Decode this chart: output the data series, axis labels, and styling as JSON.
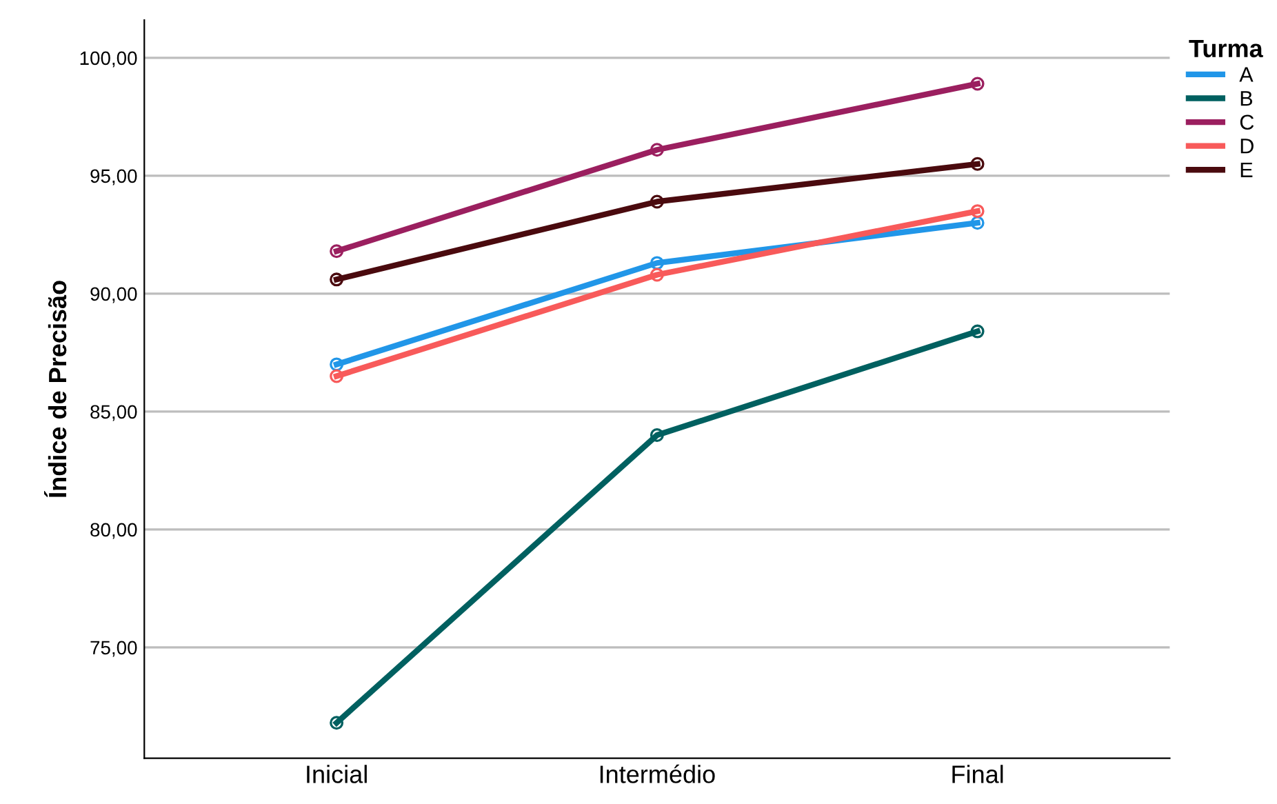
{
  "chart_data": {
    "type": "line",
    "ylabel": "Índice de Precisão",
    "legend_title": "Turma",
    "categories": [
      "Inicial",
      "Intermédio",
      "Final"
    ],
    "series": [
      {
        "name": "A",
        "color": "#2196e8",
        "values": [
          87.0,
          91.3,
          93.0
        ]
      },
      {
        "name": "B",
        "color": "#006060",
        "values": [
          71.8,
          84.0,
          88.4
        ]
      },
      {
        "name": "C",
        "color": "#9b1f5f",
        "values": [
          91.8,
          96.1,
          98.9
        ]
      },
      {
        "name": "D",
        "color": "#f85a5a",
        "values": [
          86.5,
          90.8,
          93.5
        ]
      },
      {
        "name": "E",
        "color": "#4a0a0e",
        "values": [
          90.6,
          93.9,
          95.5
        ]
      }
    ],
    "ylim": [
      70.3,
      101.6
    ],
    "yticks": [
      {
        "value": 75,
        "label": "75,00"
      },
      {
        "value": 80,
        "label": "80,00"
      },
      {
        "value": 85,
        "label": "85,00"
      },
      {
        "value": 90,
        "label": "90,00"
      },
      {
        "value": 95,
        "label": "95,00"
      },
      {
        "value": 100,
        "label": "100,00"
      }
    ],
    "grid": "y",
    "legend": "top right",
    "marker": "circle",
    "line_style": "solid"
  }
}
